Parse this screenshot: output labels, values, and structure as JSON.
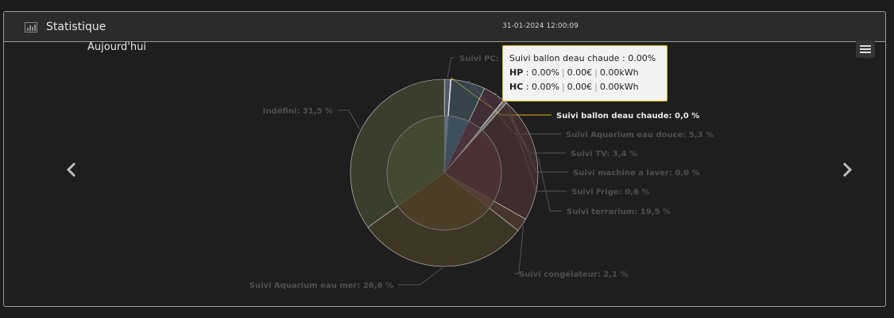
{
  "header": {
    "title": "Statistique",
    "timestamp": "31-01-2024 12:00:09"
  },
  "chart_data": {
    "type": "pie",
    "title": "Aujourd'hui",
    "slices": [
      {
        "name": "Suivi PC",
        "label": "Suivi PC: ",
        "value": 1.0,
        "color": "#7a8aa8"
      },
      {
        "name": "Suivi ballon deau chaude",
        "label": "Suivi ballon deau chaude: 0,0 %",
        "value": 0.0,
        "color": "#e0d860"
      },
      {
        "name": "Suivi Aquarium eau douce",
        "label": "Suivi Aquarium eau douce: 5,3 %",
        "value": 5.3,
        "color": "#4a6270"
      },
      {
        "name": "Suivi TV",
        "label": "Suivi TV: 3,4 %",
        "value": 3.4,
        "color": "#5c3a48"
      },
      {
        "name": "Suivi machine a laver",
        "label": "Suivi machine a laver: 0,0 %",
        "value": 0.0,
        "color": "#777777"
      },
      {
        "name": "Suivi Frigo",
        "label": "Suivi Frigo: 0,6 %",
        "value": 0.6,
        "color": "#aaa9a0"
      },
      {
        "name": "Suivi terrarium",
        "label": "Suivi terrarium: 19,5 %",
        "value": 19.5,
        "color": "#5a3a3a"
      },
      {
        "name": "Suivi congélateur",
        "label": "Suivi congélateur: 2,1 %",
        "value": 2.1,
        "color": "#6a4a3a"
      },
      {
        "name": "Suivi Aquarium eau mer",
        "label": "Suivi Aquarium eau mer: 26,6 %",
        "value": 26.6,
        "color": "#5a4a2a"
      },
      {
        "name": "Indéfini",
        "label": "Indéfini: 31,5 %",
        "value": 31.5,
        "color": "#525a3a"
      }
    ],
    "active_slice": "Suivi ballon deau chaude"
  },
  "tooltip": {
    "title_name": "Suivi ballon deau chaude",
    "title_value": "0.00%",
    "hp_label": "HP",
    "hp_percent": "0.00%",
    "hp_cost": "0.00€",
    "hp_energy": "0.00kWh",
    "hc_label": "HC",
    "hc_percent": "0.00%",
    "hc_cost": "0.00€",
    "hc_energy": "0.00kWh"
  }
}
